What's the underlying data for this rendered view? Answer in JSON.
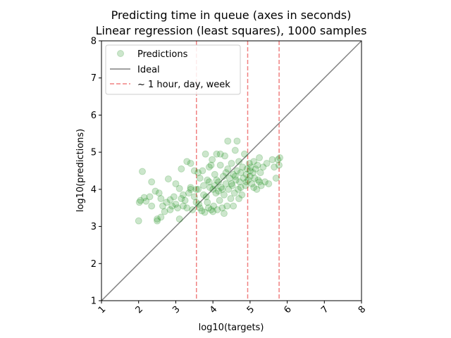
{
  "chart_data": {
    "type": "scatter",
    "title_line1": "Predicting time in queue (axes in seconds)",
    "title_line2": "Linear regression (least squares), 1000 samples",
    "xlabel": "log10(targets)",
    "ylabel": "log10(predictions)",
    "xlim": [
      1,
      8
    ],
    "ylim": [
      1,
      8
    ],
    "xticks": [
      "1",
      "2",
      "3",
      "4",
      "5",
      "6",
      "7",
      "8"
    ],
    "yticks": [
      "1",
      "2",
      "3",
      "4",
      "5",
      "6",
      "7",
      "8"
    ],
    "legend": {
      "placement": "top-left",
      "entries": [
        "Predictions",
        "Ideal",
        "~ 1 hour, day, week"
      ]
    },
    "ideal_line": {
      "from": [
        1,
        1
      ],
      "to": [
        8,
        8
      ],
      "color": "#808080"
    },
    "reference_lines_x": [
      3.556,
      4.936,
      5.782
    ],
    "reference_color": "#f08080",
    "point_color": "#008000",
    "series": [
      {
        "name": "Predictions",
        "points": [
          [
            2.02,
            3.65
          ],
          [
            2.05,
            3.7
          ],
          [
            2.0,
            3.15
          ],
          [
            2.1,
            4.48
          ],
          [
            2.15,
            3.78
          ],
          [
            2.2,
            3.68
          ],
          [
            2.3,
            3.8
          ],
          [
            2.35,
            4.2
          ],
          [
            2.35,
            3.55
          ],
          [
            2.45,
            3.95
          ],
          [
            2.5,
            3.2
          ],
          [
            2.5,
            3.15
          ],
          [
            2.55,
            3.9
          ],
          [
            2.6,
            3.75
          ],
          [
            2.65,
            3.55
          ],
          [
            2.7,
            3.4
          ],
          [
            2.75,
            3.65
          ],
          [
            2.8,
            4.28
          ],
          [
            2.85,
            3.72
          ],
          [
            2.9,
            3.55
          ],
          [
            2.95,
            3.8
          ],
          [
            3.0,
            4.15
          ],
          [
            3.0,
            3.6
          ],
          [
            3.05,
            3.5
          ],
          [
            3.1,
            4.02
          ],
          [
            3.1,
            3.2
          ],
          [
            3.15,
            4.55
          ],
          [
            3.2,
            3.85
          ],
          [
            3.2,
            3.55
          ],
          [
            3.25,
            3.7
          ],
          [
            3.3,
            4.75
          ],
          [
            3.3,
            3.5
          ],
          [
            3.35,
            3.9
          ],
          [
            3.4,
            4.7
          ],
          [
            3.4,
            4.05
          ],
          [
            3.45,
            3.45
          ],
          [
            3.5,
            4.5
          ],
          [
            3.5,
            3.8
          ],
          [
            3.55,
            4.0
          ],
          [
            3.6,
            4.0
          ],
          [
            3.62,
            3.6
          ],
          [
            3.65,
            4.3
          ],
          [
            3.7,
            3.42
          ],
          [
            3.72,
            4.5
          ],
          [
            3.75,
            4.1
          ],
          [
            3.78,
            3.38
          ],
          [
            3.8,
            4.95
          ],
          [
            3.82,
            3.8
          ],
          [
            3.85,
            4.25
          ],
          [
            3.88,
            3.5
          ],
          [
            3.9,
            4.6
          ],
          [
            3.92,
            4.05
          ],
          [
            3.95,
            3.45
          ],
          [
            3.98,
            4.8
          ],
          [
            4.0,
            4.0
          ],
          [
            4.02,
            3.55
          ],
          [
            4.05,
            4.4
          ],
          [
            4.08,
            3.9
          ],
          [
            4.1,
            4.95
          ],
          [
            4.12,
            3.45
          ],
          [
            4.15,
            4.2
          ],
          [
            4.18,
            3.7
          ],
          [
            4.2,
            4.65
          ],
          [
            4.22,
            4.05
          ],
          [
            4.25,
            3.5
          ],
          [
            4.28,
            4.35
          ],
          [
            4.3,
            3.85
          ],
          [
            4.32,
            4.9
          ],
          [
            4.35,
            4.15
          ],
          [
            4.38,
            3.55
          ],
          [
            4.4,
            4.55
          ],
          [
            4.42,
            4.0
          ],
          [
            4.45,
            4.3
          ],
          [
            4.48,
            3.75
          ],
          [
            4.5,
            4.7
          ],
          [
            4.52,
            4.1
          ],
          [
            4.55,
            4.4
          ],
          [
            4.58,
            3.9
          ],
          [
            4.6,
            5.05
          ],
          [
            4.62,
            4.25
          ],
          [
            4.65,
            4.5
          ],
          [
            4.68,
            4.0
          ],
          [
            4.7,
            4.75
          ],
          [
            4.72,
            4.2
          ],
          [
            4.75,
            4.45
          ],
          [
            4.78,
            3.85
          ],
          [
            4.8,
            4.6
          ],
          [
            4.82,
            4.3
          ],
          [
            4.85,
            4.95
          ],
          [
            4.88,
            4.1
          ],
          [
            4.9,
            4.4
          ],
          [
            4.92,
            4.55
          ],
          [
            4.95,
            4.25
          ],
          [
            4.98,
            4.7
          ],
          [
            5.0,
            4.35
          ],
          [
            5.02,
            4.6
          ],
          [
            5.05,
            4.15
          ],
          [
            5.08,
            4.45
          ],
          [
            5.1,
            4.75
          ],
          [
            5.12,
            4.3
          ],
          [
            5.15,
            4.55
          ],
          [
            5.18,
            4.0
          ],
          [
            5.2,
            4.65
          ],
          [
            5.22,
            4.25
          ],
          [
            5.25,
            4.85
          ],
          [
            5.28,
            4.45
          ],
          [
            5.3,
            4.1
          ],
          [
            5.35,
            4.6
          ],
          [
            5.4,
            4.2
          ],
          [
            5.45,
            4.7
          ],
          [
            5.5,
            4.15
          ],
          [
            5.6,
            4.8
          ],
          [
            5.65,
            4.6
          ],
          [
            5.7,
            4.3
          ],
          [
            5.75,
            4.8
          ],
          [
            5.78,
            4.65
          ],
          [
            5.8,
            4.85
          ],
          [
            4.65,
            5.3
          ],
          [
            4.4,
            5.3
          ],
          [
            4.2,
            4.95
          ],
          [
            3.95,
            4.65
          ],
          [
            3.6,
            4.45
          ],
          [
            3.4,
            4.0
          ],
          [
            3.85,
            3.65
          ],
          [
            4.0,
            3.4
          ],
          [
            4.3,
            3.35
          ],
          [
            4.55,
            3.55
          ],
          [
            4.7,
            3.75
          ],
          [
            4.1,
            4.25
          ],
          [
            4.25,
            4.0
          ],
          [
            4.5,
            4.15
          ],
          [
            4.6,
            4.35
          ],
          [
            4.75,
            4.05
          ],
          [
            4.9,
            4.2
          ],
          [
            5.0,
            4.5
          ],
          [
            5.1,
            4.05
          ],
          [
            5.25,
            4.2
          ],
          [
            4.35,
            4.45
          ],
          [
            4.15,
            3.95
          ],
          [
            3.75,
            3.85
          ],
          [
            3.55,
            3.65
          ],
          [
            3.65,
            3.5
          ],
          [
            2.6,
            3.25
          ],
          [
            2.85,
            3.45
          ],
          [
            3.15,
            3.75
          ],
          [
            3.9,
            4.2
          ],
          [
            4.05,
            4.1
          ]
        ]
      }
    ]
  }
}
